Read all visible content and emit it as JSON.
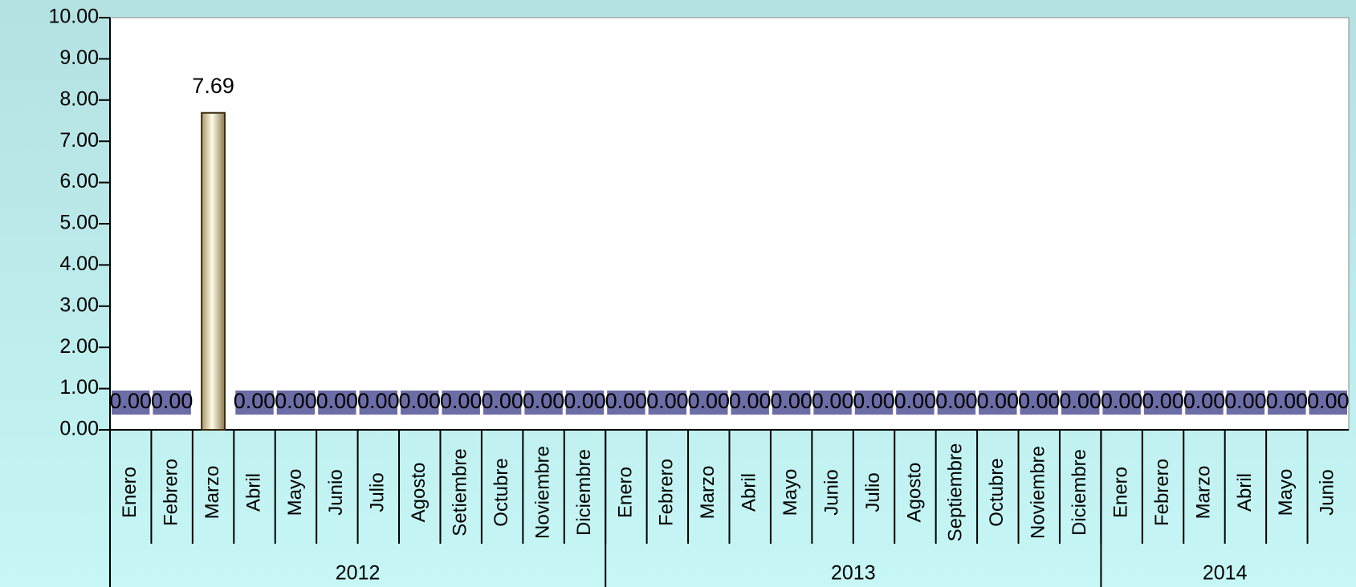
{
  "chart_data": {
    "type": "bar",
    "groups": [
      {
        "name": "2012",
        "categories": [
          "Enero",
          "Febrero",
          "Marzo",
          "Abril",
          "Mayo",
          "Junio",
          "Julio",
          "Agosto",
          "Setiembre",
          "Octubre",
          "Noviembre",
          "Diciembre"
        ]
      },
      {
        "name": "2013",
        "categories": [
          "Enero",
          "Febrero",
          "Marzo",
          "Abril",
          "Mayo",
          "Junio",
          "Julio",
          "Agosto",
          "Septiembre",
          "Octubre",
          "Noviembre",
          "Diciembre"
        ]
      },
      {
        "name": "2014",
        "categories": [
          "Enero",
          "Febrero",
          "Marzo",
          "Abril",
          "Mayo",
          "Junio"
        ]
      }
    ],
    "values": [
      0,
      0,
      7.69,
      0,
      0,
      0,
      0,
      0,
      0,
      0,
      0,
      0,
      0,
      0,
      0,
      0,
      0,
      0,
      0,
      0,
      0,
      0,
      0,
      0,
      0,
      0,
      0,
      0,
      0,
      0
    ],
    "value_labels": [
      "0.00",
      "0.00",
      "7.69",
      "0.00",
      "0.00",
      "0.00",
      "0.00",
      "0.00",
      "0.00",
      "0.00",
      "0.00",
      "0.00",
      "0.00",
      "0.00",
      "0.00",
      "0.00",
      "0.00",
      "0.00",
      "0.00",
      "0.00",
      "0.00",
      "0.00",
      "0.00",
      "0.00",
      "0.00",
      "0.00",
      "0.00",
      "0.00",
      "0.00",
      "0.00"
    ],
    "color": "#f2e6b8",
    "ylim": [
      0,
      10
    ],
    "yticks": [
      {
        "value": 0,
        "label": "0.00"
      },
      {
        "value": 1,
        "label": "1.00"
      },
      {
        "value": 2,
        "label": "2.00"
      },
      {
        "value": 3,
        "label": "3.00"
      },
      {
        "value": 4,
        "label": "4.00"
      },
      {
        "value": 5,
        "label": "5.00"
      },
      {
        "value": 6,
        "label": "6.00"
      },
      {
        "value": 7,
        "label": "7.00"
      },
      {
        "value": 8,
        "label": "8.00"
      },
      {
        "value": 9,
        "label": "9.00"
      },
      {
        "value": 10,
        "label": "10.00"
      }
    ]
  }
}
